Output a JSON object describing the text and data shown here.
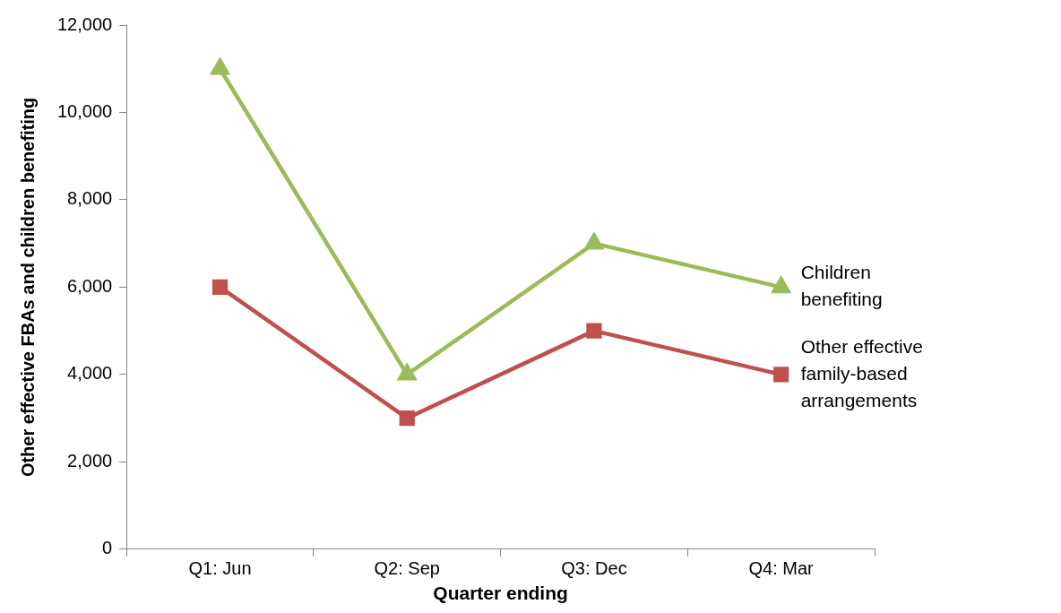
{
  "chart_data": {
    "type": "line",
    "xlabel": "Quarter ending",
    "ylabel": "Other effective FBAs and children benefiting",
    "categories": [
      "Q1: Jun",
      "Q2: Sep",
      "Q3: Dec",
      "Q4: Mar"
    ],
    "ylim": [
      0,
      12000
    ],
    "yticks": [
      {
        "value": 0,
        "label": "0"
      },
      {
        "value": 2000,
        "label": "2,000"
      },
      {
        "value": 4000,
        "label": "4,000"
      },
      {
        "value": 6000,
        "label": "6,000"
      },
      {
        "value": 8000,
        "label": "8,000"
      },
      {
        "value": 10000,
        "label": "10,000"
      },
      {
        "value": 12000,
        "label": "12,000"
      }
    ],
    "legend": false,
    "series": [
      {
        "name": "Children benefiting",
        "color": "#9bbb59",
        "marker": "triangle",
        "values": [
          11000,
          4000,
          7000,
          6000
        ]
      },
      {
        "name": "Other effective family-based arrangements",
        "color": "#c0504d",
        "marker": "square",
        "values": [
          6000,
          3000,
          5000,
          4000
        ]
      }
    ]
  }
}
